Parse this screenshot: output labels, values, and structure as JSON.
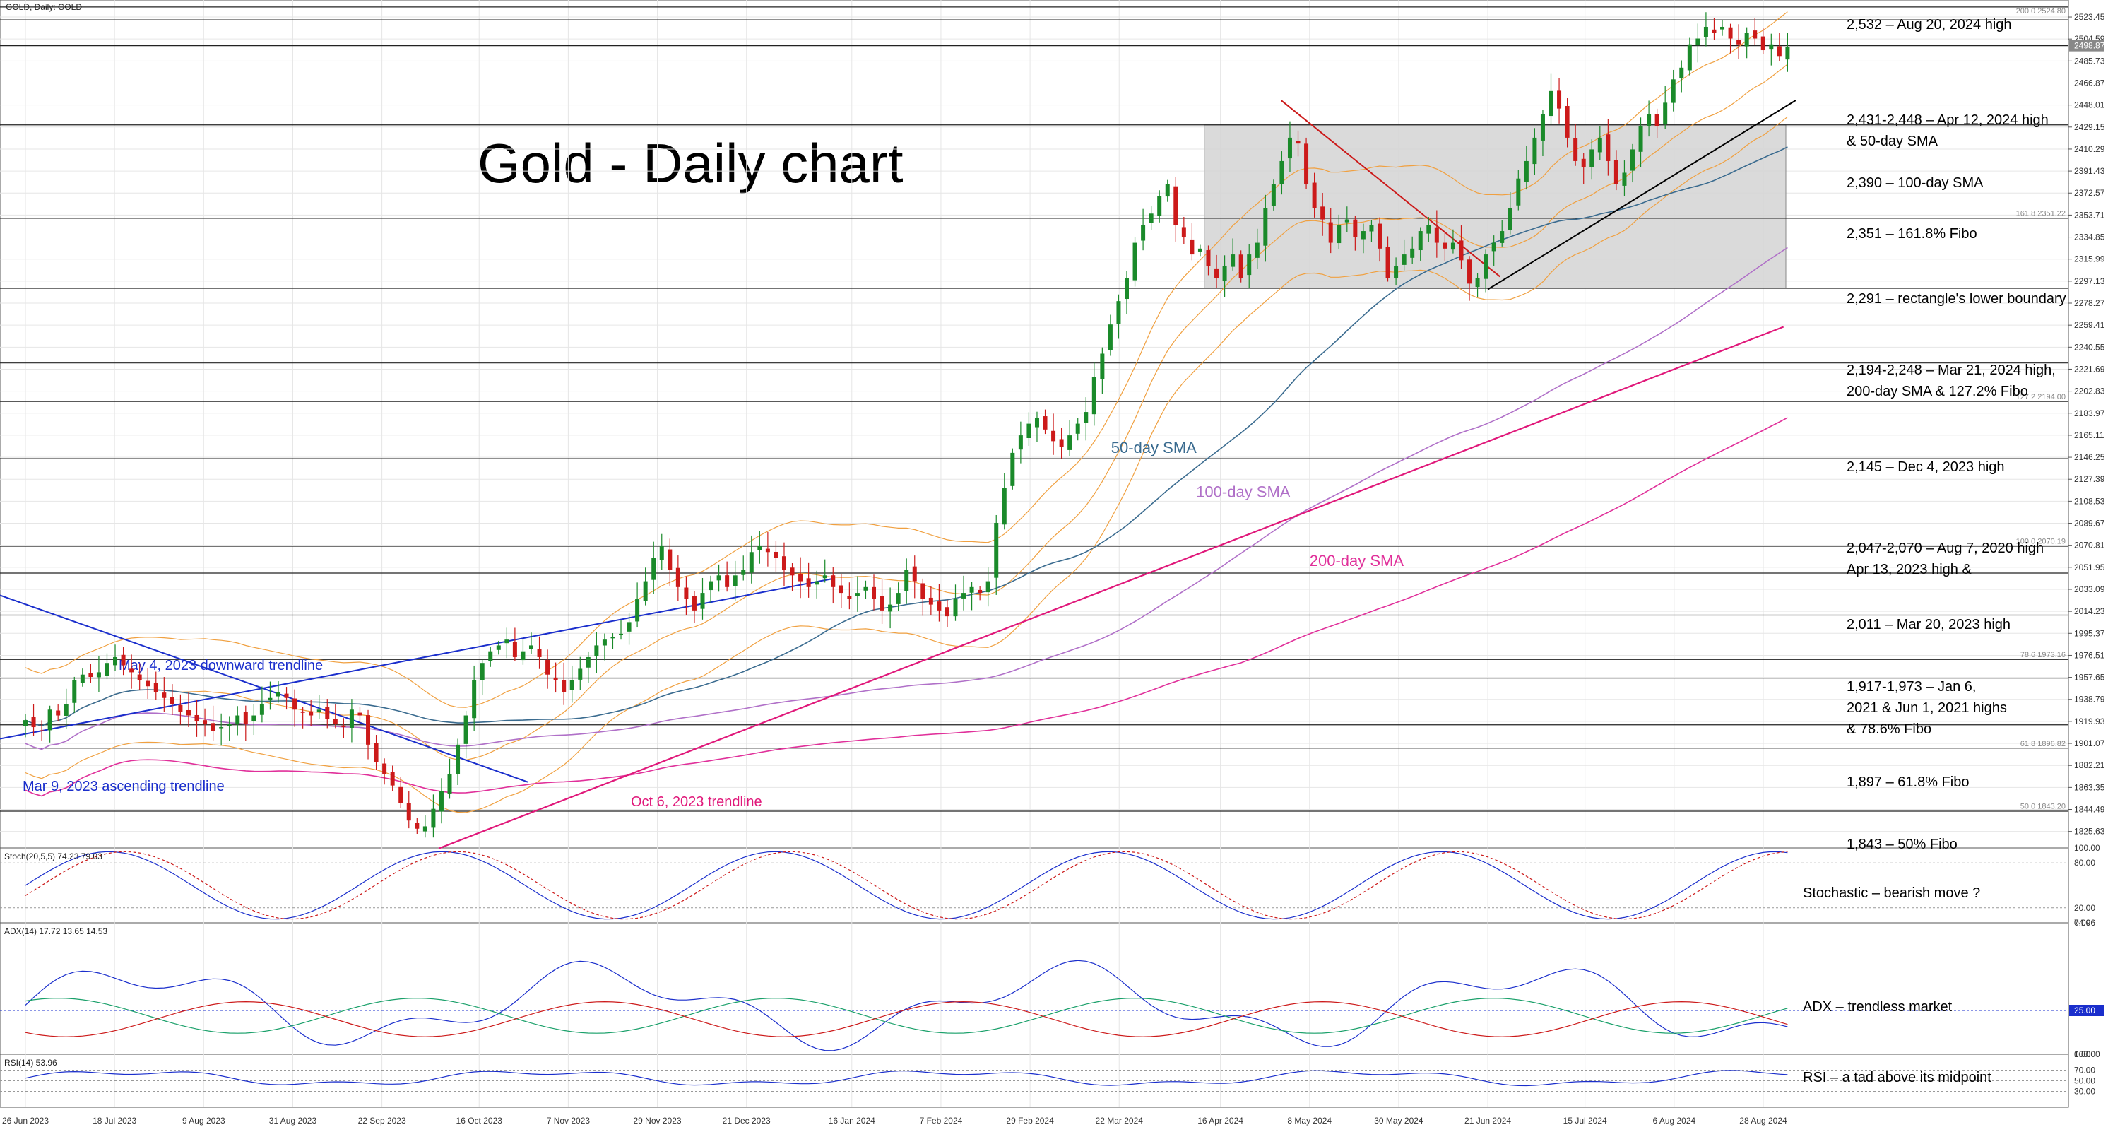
{
  "header": {
    "instrument": "GOLD, Daily:  GOLD",
    "title": "Gold - Daily chart",
    "stoch_label": "Stoch(20,5,5) 74.23 79.03",
    "adx_label": "ADX(14) 17.72 13.65 14.53",
    "rsi_label": "RSI(14) 53.96"
  },
  "chart_data": {
    "type": "line",
    "title": "Gold - Daily chart",
    "ylim": [
      1810,
      2540
    ],
    "price_axis_ticks": [
      "2523.45",
      "2504.59",
      "2485.73",
      "2466.87",
      "2448.01",
      "2429.15",
      "2410.29",
      "2391.43",
      "2372.57",
      "2353.71",
      "2334.85",
      "2315.99",
      "2297.13",
      "2278.27",
      "2259.41",
      "2240.55",
      "2221.69",
      "2202.83",
      "2183.97",
      "2165.11",
      "2146.25",
      "2127.39",
      "2108.53",
      "2089.67",
      "2070.81",
      "2051.95",
      "2033.09",
      "2014.23",
      "1995.37",
      "1976.51",
      "1957.65",
      "1938.79",
      "1919.93",
      "1901.07",
      "1882.21",
      "1863.35",
      "1844.49",
      "1825.63"
    ],
    "date_ticks": [
      "26 Jun 2023",
      "18 Jul 2023",
      "9 Aug 2023",
      "31 Aug 2023",
      "22 Sep 2023",
      "16 Oct 2023",
      "7 Nov 2023",
      "29 Nov 2023",
      "21 Dec 2023",
      "16 Jan 2024",
      "7 Feb 2024",
      "29 Feb 2024",
      "22 Mar 2024",
      "16 Apr 2024",
      "8 May 2024",
      "30 May 2024",
      "21 Jun 2024",
      "15 Jul 2024",
      "6 Aug 2024",
      "28 Aug 2024"
    ],
    "current_price_label": "2498.87",
    "close_series": {
      "name": "",
      "x_start": "26 Jun 2023",
      "x_end": "3 Sep 2024",
      "values": [
        1921,
        1915,
        1912,
        1930,
        1925,
        1935,
        1955,
        1960,
        1958,
        1962,
        1970,
        1975,
        1968,
        1962,
        1955,
        1950,
        1945,
        1940,
        1935,
        1928,
        1925,
        1920,
        1918,
        1912,
        1915,
        1918,
        1925,
        1918,
        1925,
        1935,
        1940,
        1945,
        1940,
        1930,
        1928,
        1925,
        1930,
        1922,
        1918,
        1915,
        1930,
        1925,
        1900,
        1885,
        1875,
        1865,
        1850,
        1835,
        1828,
        1830,
        1845,
        1860,
        1875,
        1900,
        1925,
        1955,
        1970,
        1980,
        1985,
        1990,
        1975,
        1980,
        1985,
        1975,
        1960,
        1955,
        1945,
        1955,
        1965,
        1975,
        1985,
        1990,
        1992,
        1995,
        2005,
        2025,
        2040,
        2060,
        2070,
        2050,
        2035,
        2025,
        2015,
        2030,
        2040,
        2045,
        2035,
        2045,
        2050,
        2065,
        2070,
        2065,
        2060,
        2050,
        2045,
        2040,
        2035,
        2040,
        2045,
        2035,
        2030,
        2025,
        2030,
        2035,
        2025,
        2015,
        2020,
        2030,
        2050,
        2040,
        2025,
        2020,
        2015,
        2010,
        2025,
        2030,
        2035,
        2030,
        2040,
        2090,
        2120,
        2150,
        2165,
        2175,
        2180,
        2170,
        2160,
        2155,
        2165,
        2175,
        2185,
        2215,
        2235,
        2260,
        2280,
        2300,
        2330,
        2345,
        2355,
        2370,
        2380,
        2345,
        2335,
        2320,
        2325,
        2310,
        2300,
        2310,
        2320,
        2300,
        2320,
        2330,
        2360,
        2380,
        2400,
        2420,
        2415,
        2380,
        2360,
        2350,
        2330,
        2345,
        2350,
        2335,
        2340,
        2345,
        2325,
        2300,
        2310,
        2320,
        2325,
        2340,
        2345,
        2330,
        2325,
        2330,
        2315,
        2295,
        2300,
        2320,
        2330,
        2340,
        2360,
        2385,
        2400,
        2420,
        2440,
        2460,
        2445,
        2420,
        2400,
        2395,
        2410,
        2420,
        2400,
        2380,
        2390,
        2410,
        2430,
        2440,
        2430,
        2450,
        2470,
        2480,
        2500,
        2505,
        2515,
        2510,
        2515,
        2505,
        2500,
        2510,
        2505,
        2495,
        2500,
        2490,
        2498
      ]
    },
    "rectangle": {
      "from": "12 Apr 2024",
      "to": "6 Sep 2024",
      "top": 2431,
      "bottom": 2291
    },
    "horizontal_levels": [
      2532,
      2521,
      2498.87,
      2431,
      2351,
      2291,
      2227,
      2194,
      2145,
      2070,
      2047,
      2011,
      1973,
      1957,
      1917,
      1897,
      1843
    ],
    "overlays": [
      {
        "label": "50-day SMA",
        "color": "#3a6b8f",
        "label_value": 2150,
        "label_date": "20 Mar 2024"
      },
      {
        "label": "100-day SMA",
        "color": "#b070c8",
        "label_value": 2112,
        "label_date": "10 Apr 2024"
      },
      {
        "label": "200-day SMA",
        "color": "#e0309a",
        "label_value": 2053,
        "label_date": "8 May 2024"
      },
      {
        "label": "",
        "color": "#f0a040"
      }
    ],
    "trendlines": [
      {
        "label": "Mar 9, 2023 ascending trendline",
        "color": "#1a2ecc"
      },
      {
        "label": "May 4, 2023 downward trendline",
        "color": "#1a2ecc"
      },
      {
        "label": "Oct 6, 2023 trendline",
        "color": "#e0187a"
      }
    ],
    "fibo_tags": [
      "200.0 2524.80",
      "161.8 2351.22",
      "127.2 2194.00",
      "100.0 2070.19",
      "78.6 1973.16",
      "61.8 1896.82",
      "50.0 1843.20"
    ],
    "annotations": [
      {
        "lines": [
          "2,532 – Aug 20, 2024 high"
        ]
      },
      {
        "lines": [
          "2,431-2,448 – Apr 12, 2024 high",
          "& 50-day SMA"
        ]
      },
      {
        "lines": [
          "2,390 – 100-day SMA"
        ]
      },
      {
        "lines": [
          "2,351 – 161.8% Fibo"
        ]
      },
      {
        "lines": [
          "2,291 – rectangle's lower boundary"
        ]
      },
      {
        "lines": [
          "2,194-2,248 – Mar 21, 2024 high,",
          "200-day SMA & 127.2% Fibo"
        ]
      },
      {
        "lines": [
          "2,145 – Dec 4, 2023 high"
        ]
      },
      {
        "lines": [
          "2,047-2,070 – Aug 7, 2020 high",
          "Apr 13, 2023 high &"
        ]
      },
      {
        "lines": [
          "2,011 – Mar 20, 2023 high"
        ]
      },
      {
        "lines": [
          "1,917-1,973 – Jan 6,",
          "2021 & Jun 1, 2021 highs",
          "& 78.6% Fibo"
        ]
      },
      {
        "lines": [
          "1,897 – 61.8% Fibo"
        ]
      },
      {
        "lines": [
          "1,843 – 50% Fibo"
        ]
      }
    ],
    "indicators": {
      "stochastic": {
        "label": "Stochastic – bearish move ?",
        "ticks": [
          "100.00",
          "80.00",
          "20.00",
          "0.00"
        ]
      },
      "adx": {
        "label": "ADX – trendless market",
        "ticks": [
          "74.96",
          "25.00",
          "0.00"
        ],
        "highlight": "25.00"
      },
      "rsi": {
        "label": "RSI – a tad above its midpoint",
        "ticks": [
          "100.00",
          "70.00",
          "50.00",
          "30.00"
        ]
      }
    }
  },
  "colors": {
    "background": "#ffffff",
    "up_candle": "#1a8a2a",
    "down_candle": "#cc1a1a",
    "rect_fill": "#d3d3d3",
    "grid": "#e6e6e6",
    "axis_text": "#333333"
  }
}
